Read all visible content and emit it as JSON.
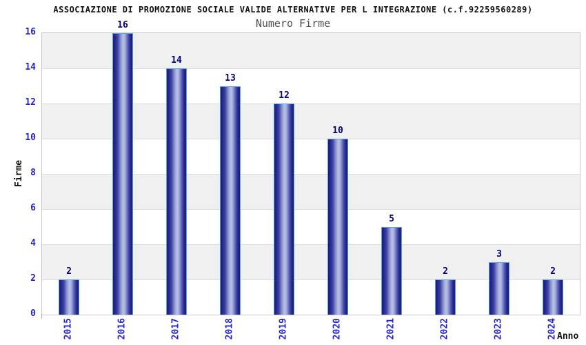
{
  "header": {
    "title": "ASSOCIAZIONE DI PROMOZIONE SOCIALE VALIDE ALTERNATIVE PER L INTEGRAZIONE (c.f.92259560289)",
    "subtitle": "Numero Firme"
  },
  "chart_data": {
    "type": "bar",
    "title": "Numero Firme",
    "categories": [
      "2015",
      "2016",
      "2017",
      "2018",
      "2019",
      "2020",
      "2021",
      "2022",
      "2023",
      "2024"
    ],
    "values": [
      2,
      16,
      14,
      13,
      12,
      10,
      5,
      2,
      3,
      2
    ],
    "xlabel": "Anno",
    "ylabel": "Firme",
    "ylim": [
      0,
      16
    ],
    "ytick_step": 2,
    "yticks": [
      0,
      2,
      4,
      6,
      8,
      10,
      12,
      14,
      16
    ],
    "grid": "alternating-horizontal-bands",
    "legend_position": "none",
    "bar_value_labels_shown": true
  },
  "colors": {
    "bar_edge_dark": "#1b1b7e",
    "bar_mid": "#8f97d0",
    "bar_center_light": "#bac2ea",
    "bar_border": "#5aa2f0",
    "tick_label_blue": "#2424cc",
    "value_label_navy": "#00007a",
    "subtitle_gray": "#4d4d4d",
    "band_gray": "#f0f0f0",
    "band_white": "#ffffff",
    "gridline": "#dcdcdc",
    "plot_border": "#c9c9c9",
    "title_black": "#111111"
  }
}
